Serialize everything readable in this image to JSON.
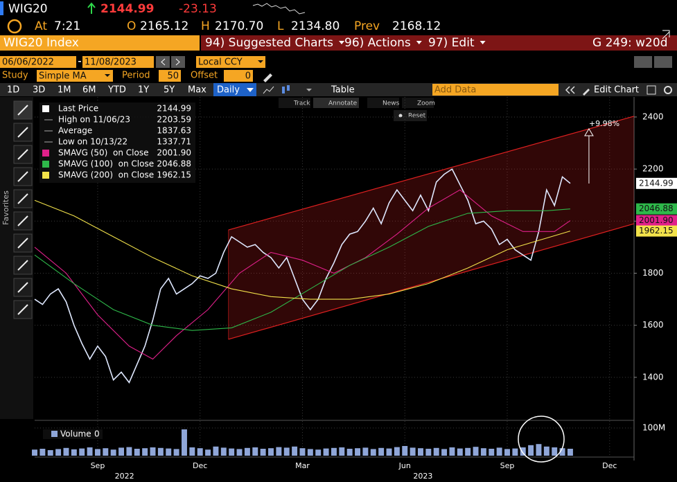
{
  "header": {
    "ticker": "WIG20",
    "last": "2144.99",
    "change": "-23.13",
    "time_label": "At",
    "time": "7:21",
    "open_label": "O",
    "open": "2165.12",
    "high_label": "H",
    "high": "2170.70",
    "low_label": "L",
    "low": "2134.80",
    "prev_label": "Prev",
    "prev": "2168.12"
  },
  "menu": {
    "security": "WIG20 Index",
    "items": [
      "94) Suggested Charts",
      "96) Actions",
      "97) Edit"
    ],
    "function": "G 249: w20d"
  },
  "controls": {
    "start_date": "06/06/2022",
    "end_date": "11/08/2023",
    "currency": "Local CCY",
    "study_label": "Study",
    "study": "Simple MA",
    "period_label": "Period",
    "period": "50",
    "offset_label": "Offset",
    "offset": "0"
  },
  "toolbar": {
    "periods": [
      "1D",
      "3D",
      "1M",
      "6M",
      "YTD",
      "1Y",
      "5Y",
      "Max"
    ],
    "frequency": "Daily",
    "table": "Table",
    "add_data": "Add Data",
    "edit_chart": "Edit Chart"
  },
  "chart_tools": {
    "items": [
      "Track",
      "Annotate",
      "News",
      "Zoom"
    ],
    "reset": "Reset"
  },
  "sidebar_label": "Favorites",
  "chart_data": {
    "type": "line",
    "ylim": [
      1240,
      2477
    ],
    "yticks": [
      1400,
      1600,
      1800,
      2000,
      2200,
      2400
    ],
    "xlim": [
      0,
      76.1
    ],
    "xticks": [
      {
        "value": 8,
        "label": "Sep"
      },
      {
        "value": 21,
        "label": "Dec"
      },
      {
        "value": 34,
        "label": "Mar"
      },
      {
        "value": 47,
        "label": "Jun"
      },
      {
        "value": 60,
        "label": "Sep"
      },
      {
        "value": 73,
        "label": "Dec"
      }
    ],
    "year_labels": [
      {
        "value": 11.4,
        "label": "2022"
      },
      {
        "value": 49.3,
        "label": "2023"
      }
    ],
    "grid": true,
    "series": [
      {
        "name": "Last Price",
        "color": "#dfe8ff",
        "last": "2144.99",
        "x": [
          0,
          1,
          2,
          3,
          4,
          5,
          6,
          7,
          8,
          9,
          10,
          11,
          12,
          13,
          14,
          15,
          16,
          17,
          18,
          19,
          20,
          21,
          22,
          23,
          24,
          25,
          26,
          27,
          28,
          29,
          30,
          31,
          32,
          33,
          34,
          35,
          36,
          37,
          38,
          39,
          40,
          41,
          42,
          43,
          44,
          45,
          46,
          47,
          48,
          49,
          50,
          51,
          52,
          53,
          54,
          55,
          56,
          57,
          58,
          59,
          60,
          61,
          62,
          63,
          64,
          65,
          66,
          67,
          68
        ],
        "values": [
          1700,
          1680,
          1720,
          1740,
          1690,
          1600,
          1530,
          1470,
          1520,
          1480,
          1390,
          1420,
          1380,
          1450,
          1520,
          1620,
          1740,
          1780,
          1720,
          1740,
          1760,
          1790,
          1780,
          1800,
          1880,
          1940,
          1920,
          1900,
          1910,
          1880,
          1860,
          1820,
          1860,
          1780,
          1700,
          1660,
          1700,
          1780,
          1840,
          1910,
          1950,
          1960,
          2000,
          2050,
          1990,
          2070,
          2120,
          2080,
          2040,
          2100,
          2040,
          2150,
          2180,
          2200,
          2140,
          2080,
          1990,
          2000,
          1970,
          1910,
          1930,
          1890,
          1870,
          1850,
          1960,
          2120,
          2060,
          2170,
          2145
        ]
      },
      {
        "name": "SMAVG (50)  on Close",
        "color": "#e0208a",
        "last": "2001.90",
        "x": [
          0,
          4,
          8,
          12,
          15,
          18,
          22,
          26,
          30,
          34,
          38,
          42,
          46,
          50,
          54,
          58,
          62,
          66,
          68
        ],
        "values": [
          1900,
          1800,
          1640,
          1520,
          1470,
          1560,
          1660,
          1800,
          1880,
          1850,
          1800,
          1860,
          1950,
          2050,
          2120,
          2020,
          1960,
          1960,
          2002
        ]
      },
      {
        "name": "SMAVG (100)  on Close",
        "color": "#2eb84a",
        "last": "2046.88",
        "x": [
          0,
          5,
          10,
          15,
          20,
          25,
          30,
          35,
          40,
          45,
          50,
          55,
          60,
          65,
          68
        ],
        "values": [
          1870,
          1760,
          1660,
          1600,
          1580,
          1590,
          1650,
          1740,
          1830,
          1900,
          1980,
          2030,
          2040,
          2040,
          2047
        ]
      },
      {
        "name": "SMAVG (200)  on Close",
        "color": "#f2e24a",
        "last": "1962.15",
        "x": [
          0,
          5,
          10,
          15,
          20,
          25,
          30,
          35,
          40,
          45,
          50,
          55,
          60,
          65,
          68
        ],
        "values": [
          2080,
          2020,
          1940,
          1860,
          1790,
          1740,
          1710,
          1700,
          1700,
          1720,
          1760,
          1820,
          1890,
          1935,
          1962
        ]
      }
    ],
    "stats": [
      {
        "label": "High on 11/06/23",
        "value": "2203.59"
      },
      {
        "label": "Average",
        "value": "1837.63"
      },
      {
        "label": "Low on 10/13/22",
        "value": "1337.71"
      }
    ],
    "channel": {
      "x": [
        24.6,
        76.1
      ],
      "upper": [
        1966,
        2403
      ],
      "lower": [
        1546,
        1990
      ],
      "color": "#e02020"
    },
    "annotation": "+9.98%",
    "volume": {
      "label": "Volume",
      "label_value": "0",
      "color": "#8fa6d8",
      "ylim": [
        0,
        115
      ],
      "yticks": [
        {
          "value": 100,
          "label": "100M"
        }
      ],
      "values": [
        22,
        25,
        20,
        24,
        28,
        23,
        26,
        30,
        24,
        27,
        22,
        29,
        31,
        25,
        27,
        30,
        28,
        26,
        24,
        95,
        30,
        27,
        22,
        33,
        29,
        26,
        24,
        28,
        30,
        25,
        27,
        31,
        29,
        33,
        27,
        24,
        22,
        26,
        28,
        30,
        25,
        27,
        29,
        24,
        28,
        26,
        31,
        35,
        29,
        27,
        25,
        28,
        24,
        30,
        26,
        28,
        32,
        27,
        25,
        29,
        24,
        26,
        30,
        38,
        42,
        33,
        30,
        27,
        25
      ]
    }
  }
}
